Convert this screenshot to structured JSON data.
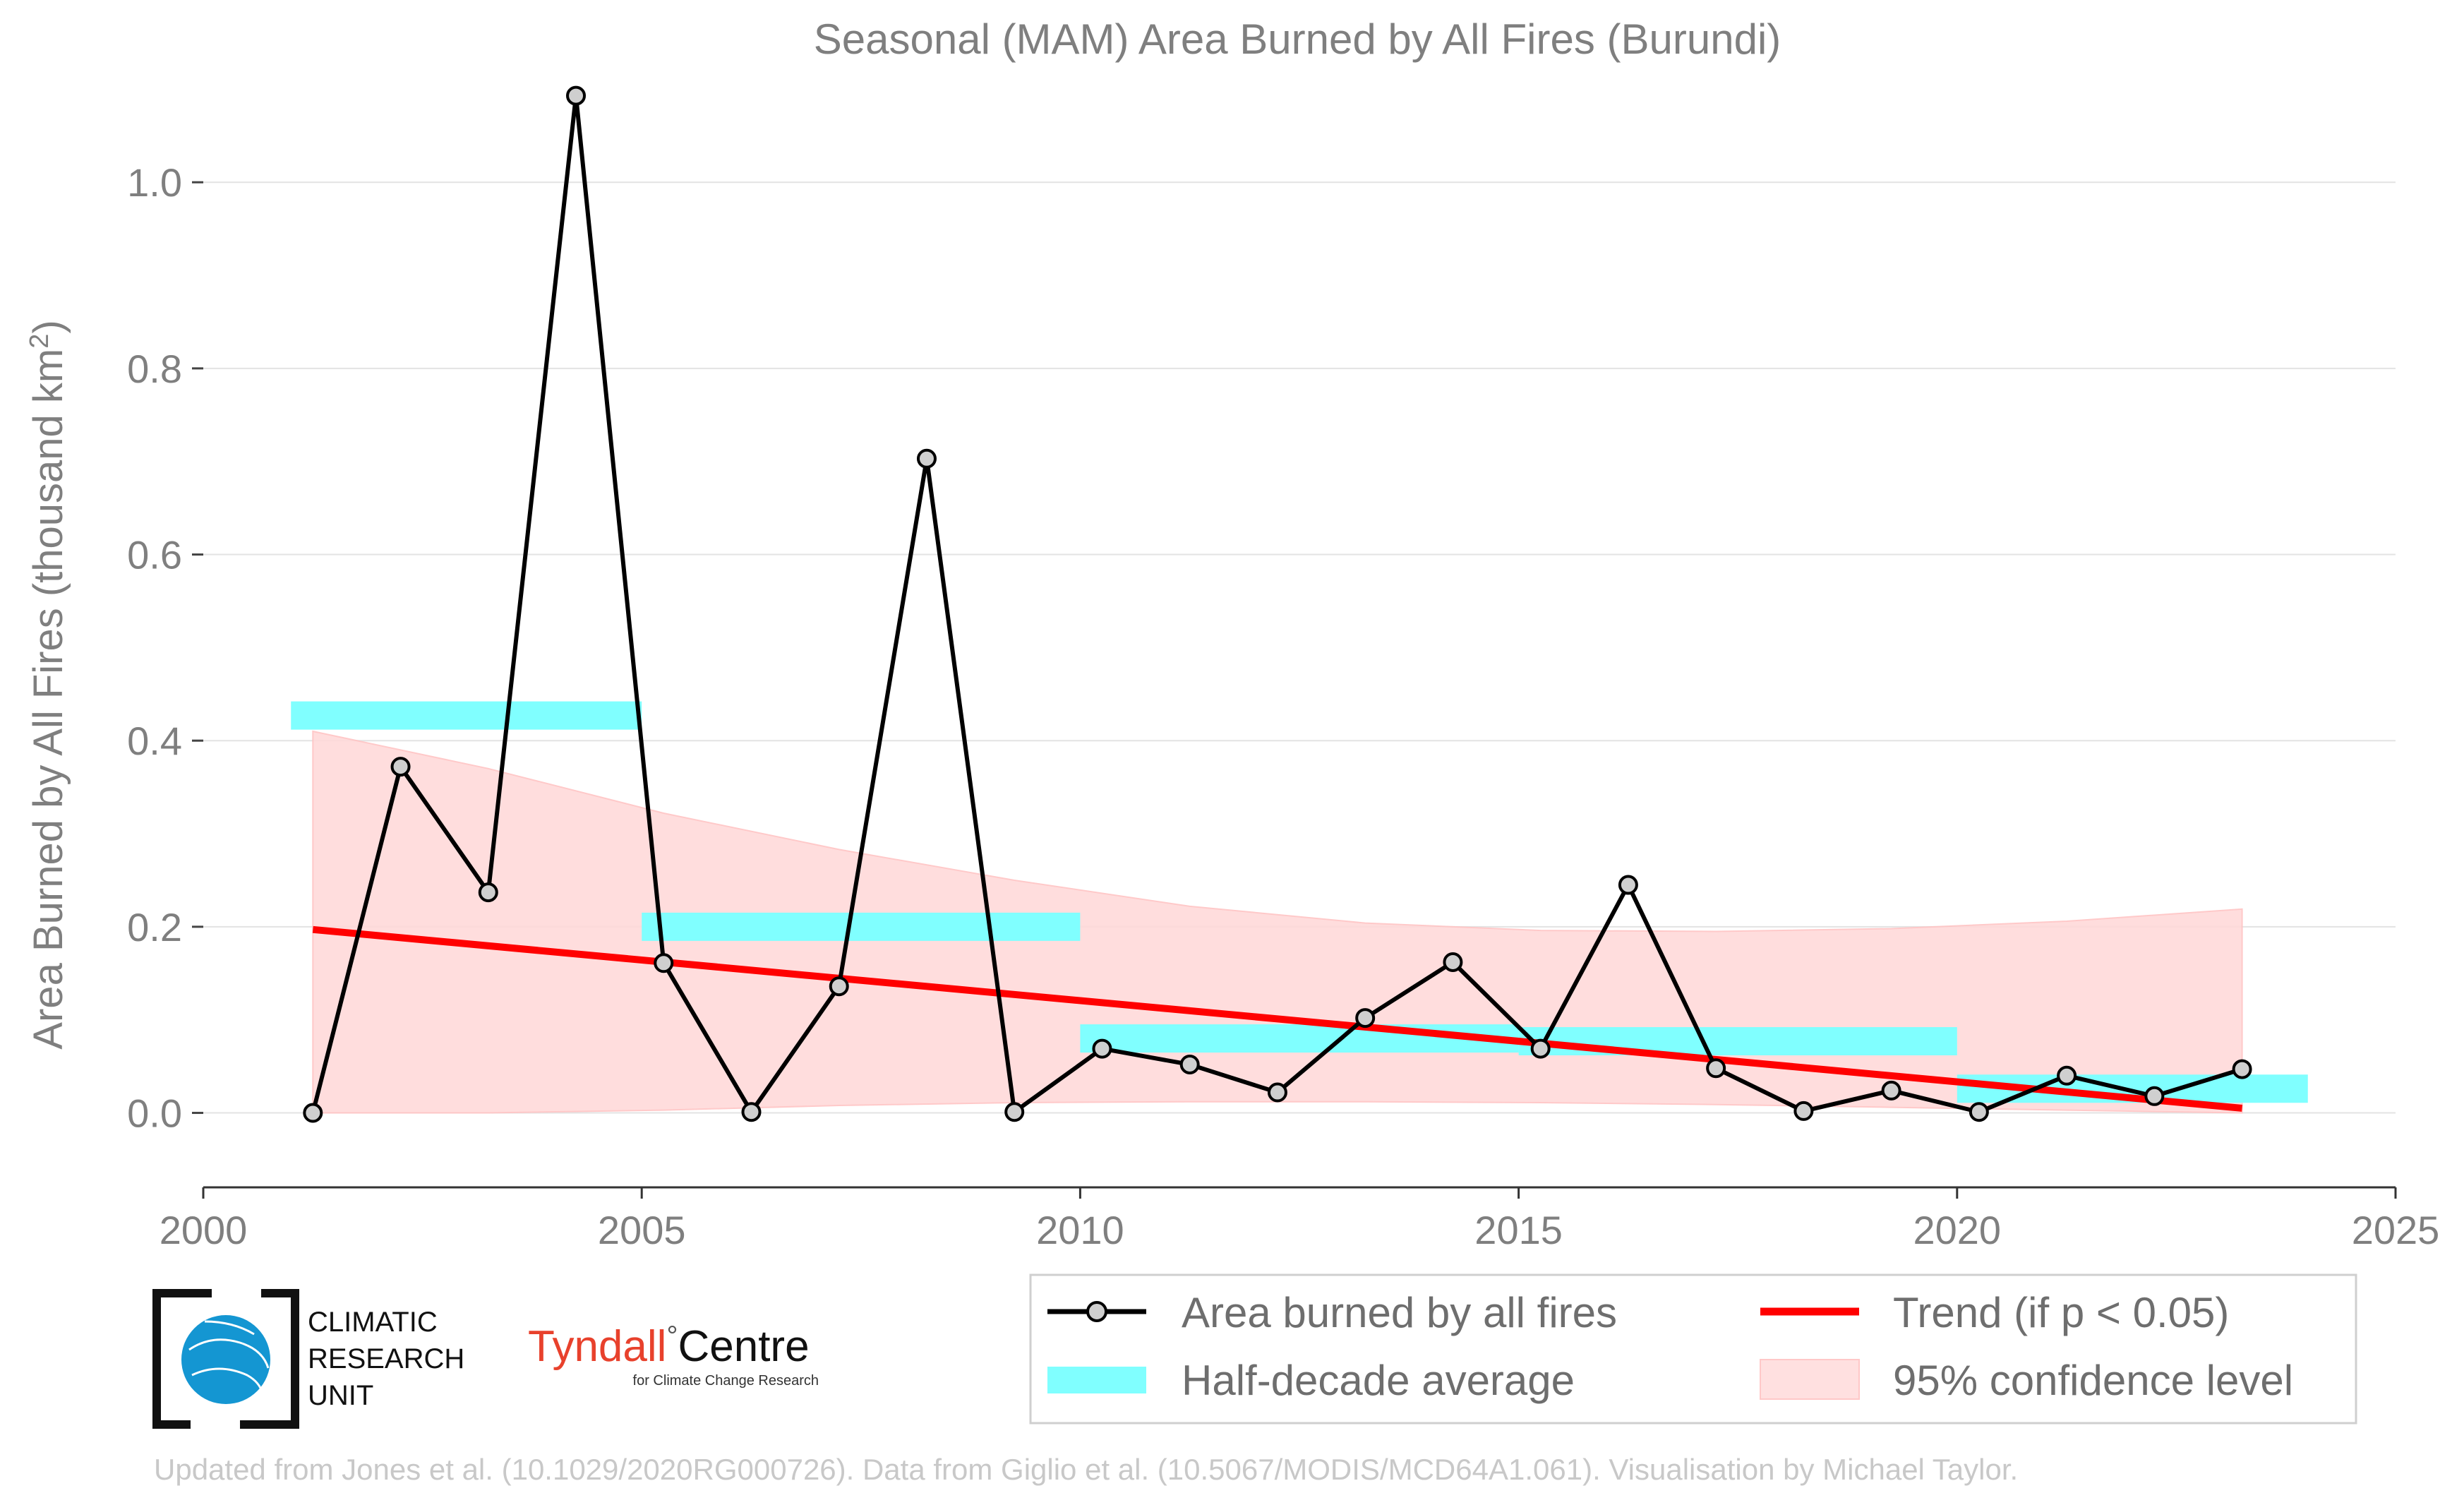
{
  "chart_data": {
    "type": "line",
    "title": "Seasonal (MAM) Area Burned by All Fires (Burundi)",
    "ylabel_main": "Area Burned by All Fires (thousand km",
    "ylabel_sup": "2",
    "ylabel_close": ")",
    "xlim": [
      2000,
      2025
    ],
    "ylim": [
      -0.08,
      1.12
    ],
    "x_ticks": [
      2000,
      2005,
      2010,
      2015,
      2020,
      2025
    ],
    "y_ticks": [
      0.0,
      0.2,
      0.4,
      0.6,
      0.8,
      1.0
    ],
    "y_tick_labels": [
      "0.0",
      "0.2",
      "0.4",
      "0.6",
      "0.8",
      "1.0"
    ],
    "grid": "horizontal",
    "legend_placement": "bottom-right",
    "series": [
      {
        "name": "Area burned by all fires",
        "color": "#000000",
        "x": [
          2001.25,
          2002.25,
          2003.25,
          2004.25,
          2005.25,
          2006.25,
          2007.25,
          2008.25,
          2009.25,
          2010.25,
          2011.25,
          2012.25,
          2013.25,
          2014.25,
          2015.25,
          2016.25,
          2017.25,
          2018.25,
          2019.25,
          2020.25,
          2021.25,
          2022.25,
          2023.25
        ],
        "y": [
          0.0,
          0.372,
          0.237,
          1.093,
          0.161,
          0.001,
          0.136,
          0.703,
          0.001,
          0.069,
          0.052,
          0.022,
          0.102,
          0.162,
          0.069,
          0.245,
          0.048,
          0.002,
          0.024,
          0.001,
          0.04,
          0.018,
          0.047
        ]
      }
    ],
    "half_decade_average": {
      "name": "Half-decade average",
      "color": "#80ffff",
      "segments": [
        {
          "x0": 2001.0,
          "x1": 2005.0,
          "y": 0.427
        },
        {
          "x0": 2005.0,
          "x1": 2010.0,
          "y": 0.2
        },
        {
          "x0": 2010.0,
          "x1": 2015.0,
          "y": 0.08
        },
        {
          "x0": 2015.0,
          "x1": 2020.0,
          "y": 0.077
        },
        {
          "x0": 2020.0,
          "x1": 2024.0,
          "y": 0.026
        }
      ]
    },
    "trend": {
      "name": "Trend (if p < 0.05)",
      "color": "#ff0000",
      "x": [
        2001.25,
        2023.25
      ],
      "y": [
        0.197,
        0.005
      ]
    },
    "confidence": {
      "name": "95% confidence level",
      "color": "#ffdada",
      "x": [
        2001.25,
        2003.25,
        2005.25,
        2007.25,
        2009.25,
        2011.25,
        2013.25,
        2015.25,
        2017.25,
        2019.25,
        2021.25,
        2023.25
      ],
      "upper": [
        0.41,
        0.37,
        0.322,
        0.283,
        0.25,
        0.222,
        0.204,
        0.196,
        0.195,
        0.198,
        0.206,
        0.219
      ],
      "lower": [
        0.0,
        0.0,
        0.003,
        0.008,
        0.011,
        0.012,
        0.012,
        0.011,
        0.009,
        0.006,
        0.003,
        0.0
      ]
    }
  },
  "logos": {
    "cru_lines": [
      "CLIMATIC",
      "RESEARCH",
      "UNIT"
    ],
    "tyndall_name": "Tyndall",
    "tyndall_degree": "°",
    "tyndall_centre": "Centre",
    "tyndall_sub": "for Climate Change Research"
  },
  "credit": "Updated from Jones et al. (10.1029/2020RG000726). Data from Giglio et al. (10.5067/MODIS/MCD64A1.061). Visualisation by Michael Taylor."
}
